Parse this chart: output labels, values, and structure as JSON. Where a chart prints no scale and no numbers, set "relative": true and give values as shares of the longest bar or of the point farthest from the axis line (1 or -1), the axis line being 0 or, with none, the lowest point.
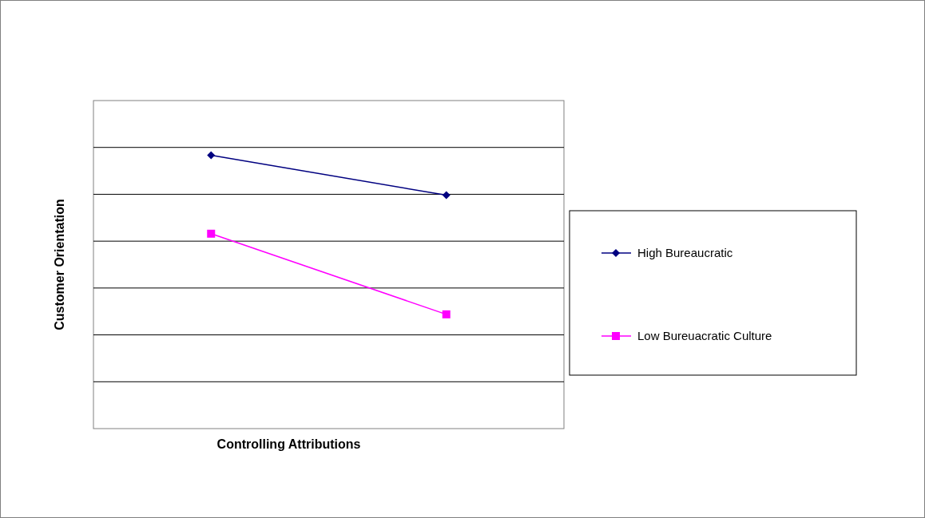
{
  "chart_data": {
    "type": "line",
    "xlabel": "Controlling Attributions",
    "ylabel": "Customer Orientation",
    "categories": [
      null,
      null
    ],
    "relative": true,
    "grid": "y",
    "legend": "right",
    "series": [
      {
        "name": "High Bureaucratic",
        "color": "#000080",
        "marker": "diamond",
        "values": [
          1,
          0.854
        ]
      },
      {
        "name": "Low Bureuacratic Culture",
        "color": "#ff00ff",
        "marker": "square",
        "values": [
          0.713,
          0.418
        ]
      }
    ]
  }
}
